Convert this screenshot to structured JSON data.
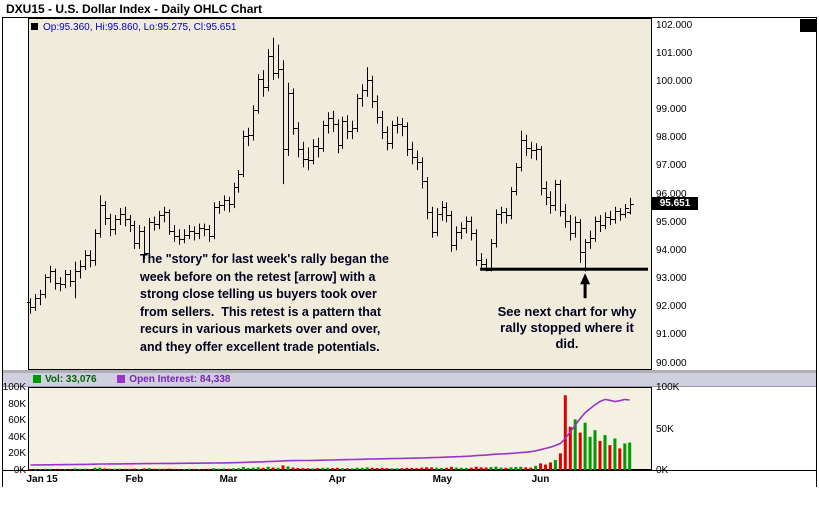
{
  "window": {
    "title": "DXU15 - U.S. Dollar Index - Daily OHLC Chart"
  },
  "price_panel": {
    "legend": "Op:95.360, Hi:95.860, Lo:95.275, Cl:95.651",
    "current_price": "95.651"
  },
  "volume_panel": {
    "vol_legend": "Vol: 33,076",
    "oi_legend": "Open Interest: 84,338",
    "left_ticks": [
      {
        "label": "0K",
        "value": 0
      },
      {
        "label": "20K",
        "value": 20000
      },
      {
        "label": "40K",
        "value": 40000
      },
      {
        "label": "60K",
        "value": 60000
      },
      {
        "label": "80K",
        "value": 80000
      },
      {
        "label": "100K",
        "value": 100000
      }
    ],
    "right_ticks": [
      {
        "label": "0K",
        "value": 0
      },
      {
        "label": "50K",
        "value": 50000
      },
      {
        "label": "100K",
        "value": 100000
      }
    ]
  },
  "annotations": {
    "story": {
      "lines": [
        "The \"story\" for last week's rally began the",
        "week before on the retest [arrow] with a",
        "strong close telling us buyers took over",
        "from sellers.  This retest is a pattern that",
        "recurs in various markets over and over,",
        "and they offer excellent trade potentials."
      ]
    },
    "see_next": {
      "lines": [
        "See next chart for why",
        "rally stopped where it",
        "did."
      ]
    },
    "support_line": {
      "price": 93.33,
      "start_index": 92
    },
    "arrow_index": 112
  },
  "chart_data": {
    "type": "ohlc-with-volume",
    "title": "DXU15 - U.S. Dollar Index - Daily OHLC Chart",
    "y_range": [
      89.75,
      102.25
    ],
    "vol_range": [
      0,
      100000
    ],
    "y_ticks": [
      90,
      91,
      92,
      93,
      94,
      95,
      96,
      97,
      98,
      99,
      100,
      101,
      102
    ],
    "x_labels": [
      {
        "label": "Jan 15",
        "index": 0
      },
      {
        "label": "Feb",
        "index": 20
      },
      {
        "label": "Mar",
        "index": 39
      },
      {
        "label": "Apr",
        "index": 61
      },
      {
        "label": "May",
        "index": 82
      },
      {
        "label": "Jun",
        "index": 102
      }
    ],
    "colors": {
      "bar": "#000000",
      "up": "#009900",
      "down": "#dd0000",
      "oi_line": "#9933cc",
      "legend_blue": "#0000cc"
    },
    "bars": [
      [
        92.15,
        92.3,
        91.75,
        92.0
      ],
      [
        92.0,
        92.45,
        91.85,
        92.3
      ],
      [
        92.3,
        92.6,
        92.05,
        92.45
      ],
      [
        92.45,
        93.15,
        92.3,
        93.05
      ],
      [
        93.05,
        93.45,
        92.85,
        93.25
      ],
      [
        93.25,
        93.35,
        92.6,
        92.85
      ],
      [
        92.85,
        93.05,
        92.55,
        92.8
      ],
      [
        92.8,
        93.3,
        92.65,
        93.15
      ],
      [
        93.15,
        93.3,
        92.7,
        92.9
      ],
      [
        92.9,
        93.6,
        92.3,
        93.25
      ],
      [
        93.25,
        93.65,
        93.0,
        93.45
      ],
      [
        93.45,
        94.0,
        93.3,
        93.85
      ],
      [
        93.85,
        94.0,
        93.4,
        93.65
      ],
      [
        93.65,
        94.75,
        93.45,
        94.6
      ],
      [
        94.6,
        95.95,
        94.45,
        95.6
      ],
      [
        95.6,
        95.75,
        94.9,
        95.15
      ],
      [
        95.15,
        95.3,
        94.5,
        94.75
      ],
      [
        94.75,
        95.25,
        94.55,
        95.1
      ],
      [
        95.1,
        95.5,
        94.9,
        95.3
      ],
      [
        95.3,
        95.55,
        94.85,
        95.1
      ],
      [
        95.1,
        95.25,
        94.65,
        94.9
      ],
      [
        94.9,
        95.05,
        94.05,
        94.25
      ],
      [
        94.25,
        94.9,
        94.05,
        94.7
      ],
      [
        94.7,
        94.85,
        93.7,
        93.9
      ],
      [
        93.9,
        95.15,
        93.75,
        95.0
      ],
      [
        95.0,
        95.2,
        94.7,
        94.95
      ],
      [
        94.95,
        95.4,
        94.75,
        95.25
      ],
      [
        95.25,
        95.55,
        95.0,
        95.35
      ],
      [
        95.35,
        95.45,
        94.55,
        94.7
      ],
      [
        94.7,
        94.9,
        94.3,
        94.5
      ],
      [
        94.5,
        94.75,
        94.2,
        94.4
      ],
      [
        94.4,
        94.75,
        94.25,
        94.55
      ],
      [
        94.55,
        94.9,
        94.4,
        94.7
      ],
      [
        94.7,
        94.85,
        94.35,
        94.6
      ],
      [
        94.6,
        94.95,
        94.4,
        94.8
      ],
      [
        94.8,
        94.95,
        94.5,
        94.75
      ],
      [
        94.75,
        94.9,
        94.3,
        94.5
      ],
      [
        94.5,
        95.7,
        94.4,
        95.55
      ],
      [
        95.55,
        95.75,
        95.3,
        95.6
      ],
      [
        95.6,
        95.95,
        95.4,
        95.8
      ],
      [
        95.8,
        95.9,
        95.35,
        95.65
      ],
      [
        95.65,
        96.4,
        95.5,
        96.25
      ],
      [
        96.25,
        96.85,
        96.05,
        96.7
      ],
      [
        96.7,
        98.25,
        96.6,
        98.05
      ],
      [
        98.05,
        98.35,
        97.7,
        98.1
      ],
      [
        98.1,
        99.15,
        97.9,
        99.0
      ],
      [
        99.0,
        100.25,
        98.85,
        100.1
      ],
      [
        100.1,
        100.4,
        99.45,
        99.8
      ],
      [
        99.8,
        101.15,
        99.65,
        100.9
      ],
      [
        100.9,
        101.55,
        100.05,
        100.3
      ],
      [
        100.3,
        101.3,
        100.1,
        100.45
      ],
      [
        100.45,
        100.75,
        96.35,
        97.6
      ],
      [
        97.6,
        99.95,
        97.35,
        99.6
      ],
      [
        99.6,
        99.75,
        98.1,
        98.35
      ],
      [
        98.35,
        98.55,
        97.3,
        97.6
      ],
      [
        97.6,
        97.85,
        96.95,
        97.25
      ],
      [
        97.25,
        97.65,
        96.85,
        97.2
      ],
      [
        97.2,
        97.95,
        97.05,
        97.7
      ],
      [
        97.7,
        98.0,
        97.3,
        97.65
      ],
      [
        97.65,
        98.6,
        97.5,
        98.45
      ],
      [
        98.45,
        98.9,
        98.15,
        98.7
      ],
      [
        98.7,
        98.95,
        98.2,
        98.5
      ],
      [
        98.5,
        98.65,
        97.45,
        97.75
      ],
      [
        97.75,
        98.75,
        97.6,
        98.6
      ],
      [
        98.6,
        98.8,
        97.95,
        98.25
      ],
      [
        98.25,
        98.6,
        97.95,
        98.35
      ],
      [
        98.35,
        99.55,
        98.2,
        99.4
      ],
      [
        99.4,
        99.9,
        99.1,
        99.7
      ],
      [
        99.7,
        100.5,
        99.45,
        100.05
      ],
      [
        100.05,
        100.2,
        99.05,
        99.3
      ],
      [
        99.3,
        99.5,
        98.5,
        98.75
      ],
      [
        98.75,
        98.95,
        97.95,
        98.2
      ],
      [
        98.2,
        98.4,
        97.55,
        97.8
      ],
      [
        97.8,
        98.6,
        97.6,
        98.45
      ],
      [
        98.45,
        98.75,
        98.15,
        98.5
      ],
      [
        98.5,
        98.7,
        98.05,
        98.4
      ],
      [
        98.4,
        98.55,
        97.35,
        97.6
      ],
      [
        97.6,
        97.85,
        97.05,
        97.3
      ],
      [
        97.3,
        97.55,
        96.85,
        97.15
      ],
      [
        97.15,
        97.3,
        96.2,
        96.45
      ],
      [
        96.45,
        96.6,
        95.1,
        95.35
      ],
      [
        95.35,
        95.55,
        94.45,
        94.65
      ],
      [
        94.65,
        95.5,
        94.5,
        95.3
      ],
      [
        95.3,
        95.75,
        95.05,
        95.55
      ],
      [
        95.55,
        95.7,
        95.0,
        95.25
      ],
      [
        95.25,
        95.4,
        93.95,
        94.2
      ],
      [
        94.2,
        94.85,
        94.0,
        94.65
      ],
      [
        94.65,
        95.0,
        94.4,
        94.8
      ],
      [
        94.8,
        95.2,
        94.6,
        95.05
      ],
      [
        95.05,
        95.2,
        94.35,
        94.6
      ],
      [
        94.6,
        94.75,
        93.45,
        93.65
      ],
      [
        93.65,
        93.9,
        93.3,
        93.5
      ],
      [
        93.5,
        93.7,
        93.25,
        93.3
      ],
      [
        93.3,
        94.4,
        93.25,
        94.25
      ],
      [
        94.25,
        95.45,
        94.1,
        95.3
      ],
      [
        95.3,
        95.55,
        94.95,
        95.35
      ],
      [
        95.35,
        95.5,
        94.95,
        95.25
      ],
      [
        95.25,
        96.25,
        95.1,
        96.1
      ],
      [
        96.1,
        97.1,
        95.95,
        96.95
      ],
      [
        96.95,
        98.25,
        96.8,
        97.9
      ],
      [
        97.9,
        98.1,
        97.35,
        97.65
      ],
      [
        97.65,
        97.85,
        97.25,
        97.55
      ],
      [
        97.55,
        97.8,
        97.2,
        97.6
      ],
      [
        97.6,
        97.7,
        95.95,
        96.2
      ],
      [
        96.2,
        96.45,
        95.6,
        95.9
      ],
      [
        95.9,
        96.1,
        95.3,
        95.6
      ],
      [
        95.6,
        96.5,
        95.4,
        96.35
      ],
      [
        96.35,
        96.5,
        95.2,
        95.4
      ],
      [
        95.4,
        95.65,
        94.8,
        95.05
      ],
      [
        95.05,
        95.25,
        94.35,
        94.6
      ],
      [
        94.6,
        95.2,
        94.45,
        95.0
      ],
      [
        95.0,
        95.1,
        93.55,
        93.95
      ],
      [
        93.95,
        94.4,
        93.25,
        94.3
      ],
      [
        94.3,
        94.7,
        94.05,
        94.45
      ],
      [
        94.45,
        95.2,
        94.3,
        95.05
      ],
      [
        95.05,
        95.25,
        94.65,
        94.9
      ],
      [
        94.9,
        95.35,
        94.75,
        95.2
      ],
      [
        95.2,
        95.4,
        94.9,
        95.1
      ],
      [
        95.1,
        95.55,
        94.95,
        95.4
      ],
      [
        95.4,
        95.5,
        95.05,
        95.3
      ],
      [
        95.3,
        95.65,
        95.15,
        95.5
      ],
      [
        95.36,
        95.86,
        95.275,
        95.651
      ]
    ],
    "volumes": [
      1200,
      900,
      1100,
      1500,
      1300,
      1000,
      900,
      1200,
      1000,
      1800,
      1400,
      1600,
      1200,
      2600,
      2900,
      1900,
      1500,
      1400,
      1600,
      1500,
      1300,
      1700,
      1200,
      1900,
      2300,
      1400,
      1500,
      1600,
      1700,
      1300,
      1100,
      1200,
      1400,
      1300,
      1200,
      1300,
      1500,
      2200,
      1600,
      1800,
      1600,
      2000,
      2200,
      3600,
      2400,
      2800,
      3300,
      2600,
      3900,
      3000,
      2700,
      5600,
      4300,
      3000,
      2400,
      2200,
      2000,
      2100,
      2300,
      2500,
      2600,
      2400,
      2600,
      2200,
      2000,
      2100,
      2800,
      2600,
      3100,
      2800,
      2400,
      2600,
      2300,
      2100,
      2000,
      2200,
      2700,
      2500,
      2300,
      2900,
      3400,
      3100,
      2800,
      2400,
      2600,
      3700,
      2900,
      2700,
      2500,
      2800,
      3900,
      3300,
      3000,
      3500,
      4000,
      2900,
      2700,
      3300,
      3600,
      3900,
      3100,
      2900,
      5000,
      8000,
      6500,
      9000,
      12000,
      20000,
      90000,
      52000,
      61000,
      45000,
      57000,
      40000,
      48000,
      35000,
      42000,
      30000,
      38000,
      26000,
      32000,
      33076
    ],
    "open_interest": [
      6000,
      6100,
      6150,
      6250,
      6300,
      6350,
      6400,
      6500,
      6550,
      6650,
      6700,
      6800,
      6850,
      7000,
      7200,
      7250,
      7300,
      7350,
      7400,
      7450,
      7500,
      7550,
      7600,
      7700,
      7750,
      7800,
      7850,
      7900,
      7950,
      8000,
      8050,
      8100,
      8150,
      8200,
      8250,
      8300,
      8350,
      8450,
      8500,
      8600,
      8700,
      8800,
      8950,
      9200,
      9350,
      9500,
      9750,
      9900,
      10200,
      10400,
      10550,
      11000,
      11200,
      11300,
      11400,
      11450,
      11500,
      11600,
      11700,
      11850,
      12000,
      12100,
      12250,
      12400,
      12500,
      12600,
      12800,
      12950,
      13150,
      13300,
      13400,
      13500,
      13600,
      13750,
      13900,
      14000,
      14150,
      14250,
      14350,
      14500,
      14700,
      14900,
      15100,
      15300,
      15500,
      15800,
      16000,
      16200,
      16500,
      16800,
      17300,
      17700,
      18000,
      18500,
      19000,
      19300,
      19600,
      20000,
      20500,
      21000,
      21500,
      22000,
      23000,
      24500,
      26000,
      27500,
      29500,
      32000,
      38000,
      46000,
      54000,
      62000,
      69000,
      74000,
      78500,
      82500,
      85000,
      84000,
      82500,
      83500,
      85000,
      84338
    ]
  }
}
